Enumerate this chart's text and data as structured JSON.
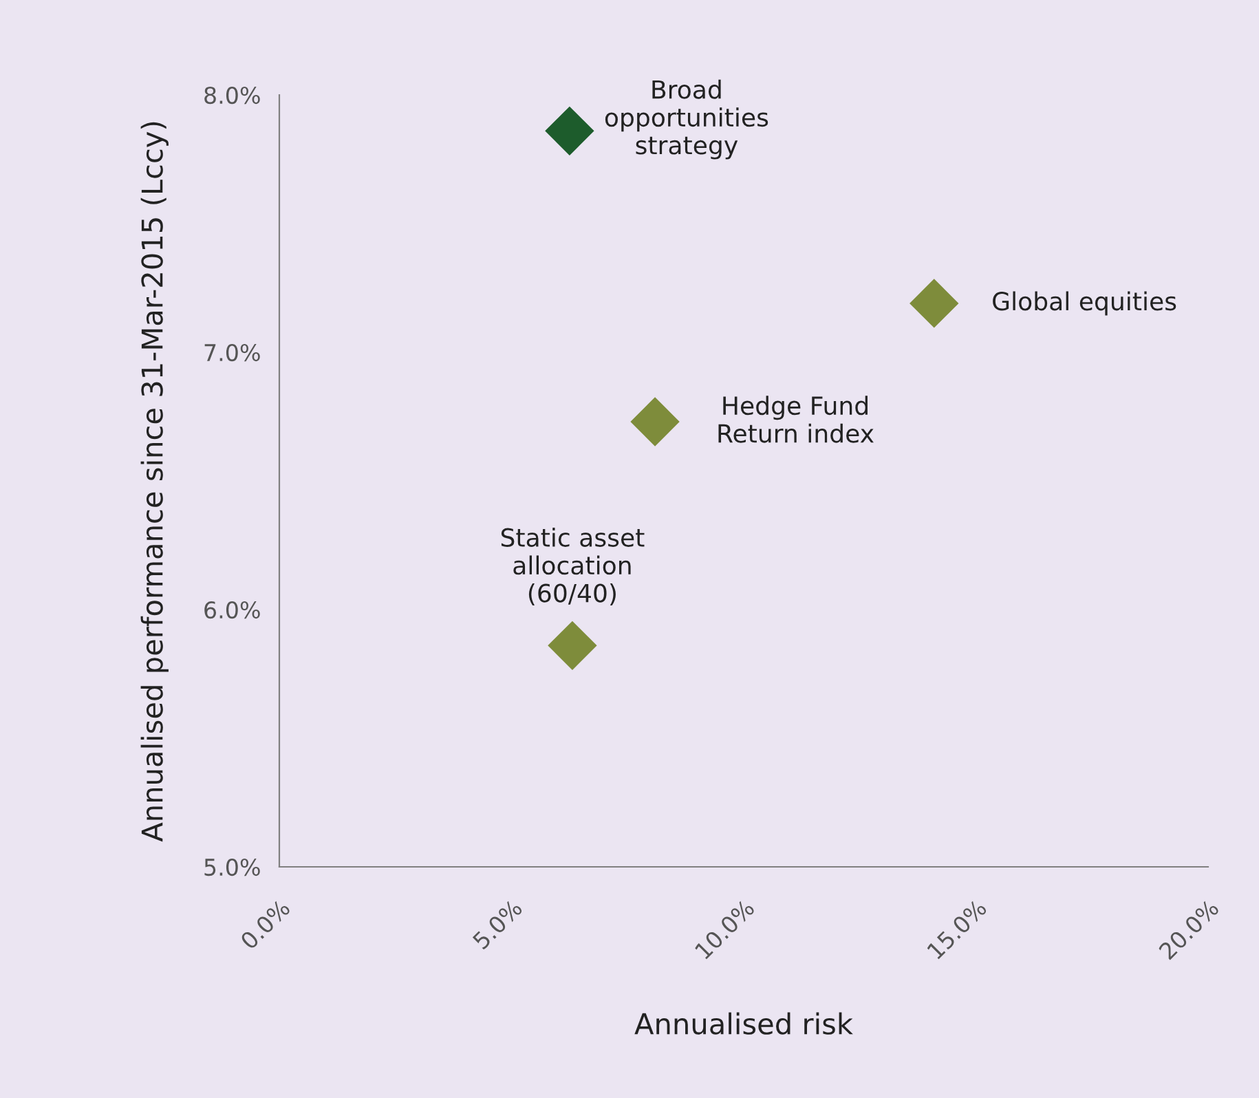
{
  "chart_data": {
    "type": "scatter",
    "xlabel": "Annualised risk",
    "ylabel": "Annualised performance since 31-Mar-2015 (Lccy)",
    "x": [
      6.25,
      14.1,
      8.09,
      6.31
    ],
    "values": [
      7.86,
      7.19,
      6.73,
      5.86
    ],
    "colors": [
      "#1d5c2c",
      "#7e8c3b",
      "#7e8c3b",
      "#7e8c3b"
    ],
    "marker": "diamond",
    "xlim": [
      0,
      20
    ],
    "ylim": [
      5,
      8
    ],
    "xticks": [
      {
        "value": 0,
        "label": "0.0%"
      },
      {
        "value": 5,
        "label": "5.0%"
      },
      {
        "value": 10,
        "label": "10.0%"
      },
      {
        "value": 15,
        "label": "15.0%"
      },
      {
        "value": 20,
        "label": "20.0%"
      }
    ],
    "yticks": [
      {
        "value": 5,
        "label": "5.0%"
      },
      {
        "value": 6,
        "label": "6.0%"
      },
      {
        "value": 7,
        "label": "7.0%"
      },
      {
        "value": 8,
        "label": "8.0%"
      }
    ],
    "grid": false,
    "annotations": [
      {
        "text": "Broad\nopportunities\nstrategy",
        "x": 6.25,
        "y": 7.86
      },
      {
        "text": "Global equities",
        "x": 14.1,
        "y": 7.19
      },
      {
        "text": "Hedge Fund\nReturn index",
        "x": 8.09,
        "y": 6.73
      },
      {
        "text": "Static asset\nallocation\n(60/40)",
        "x": 6.31,
        "y": 5.86
      }
    ]
  }
}
